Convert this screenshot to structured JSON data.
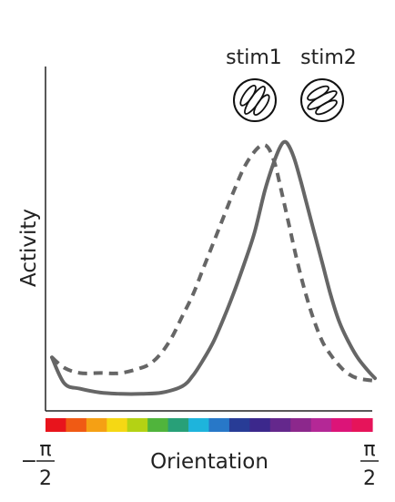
{
  "chart_data": {
    "type": "line",
    "xlabel": "Orientation",
    "ylabel": "Activity",
    "x_tick_min": {
      "sign": "−",
      "num": "π",
      "den": "2"
    },
    "x_tick_max": {
      "num": "π",
      "den": "2"
    },
    "xlim": [
      -1.5708,
      1.5708
    ],
    "ylim": [
      0,
      1
    ],
    "grid": false,
    "legend": [
      {
        "name": "stim1",
        "icon": "grating-icon-oblique",
        "line": "solid"
      },
      {
        "name": "stim2",
        "icon": "grating-icon-shallow",
        "line": "dashed"
      }
    ],
    "series": [
      {
        "name": "stim1",
        "style": "solid",
        "color": "#666666",
        "x": [
          -1.5708,
          -1.45,
          -1.3,
          -1.1,
          -0.9,
          -0.7,
          -0.5,
          -0.3,
          -0.2,
          -0.1,
          0.0,
          0.1,
          0.2,
          0.3,
          0.4,
          0.5,
          0.58,
          0.64,
          0.68,
          0.72,
          0.78,
          0.84,
          0.9,
          0.98,
          1.06,
          1.14,
          1.22,
          1.3,
          1.4,
          1.5,
          1.5708
        ],
        "y": [
          0.16,
          0.06,
          0.04,
          0.025,
          0.02,
          0.02,
          0.025,
          0.05,
          0.09,
          0.15,
          0.22,
          0.31,
          0.41,
          0.52,
          0.64,
          0.8,
          0.9,
          0.96,
          0.985,
          0.98,
          0.93,
          0.85,
          0.76,
          0.64,
          0.52,
          0.4,
          0.3,
          0.23,
          0.16,
          0.11,
          0.08
        ]
      },
      {
        "name": "stim2",
        "style": "dashed",
        "color": "#666666",
        "x": [
          -1.5708,
          -1.45,
          -1.3,
          -1.1,
          -0.9,
          -0.7,
          -0.6,
          -0.5,
          -0.4,
          -0.3,
          -0.2,
          -0.1,
          0.0,
          0.1,
          0.2,
          0.3,
          0.4,
          0.48,
          0.54,
          0.6,
          0.66,
          0.74,
          0.82,
          0.9,
          0.98,
          1.06,
          1.14,
          1.22,
          1.3,
          1.4,
          1.5708
        ],
        "y": [
          0.16,
          0.12,
          0.1,
          0.1,
          0.1,
          0.12,
          0.14,
          0.18,
          0.24,
          0.32,
          0.4,
          0.5,
          0.6,
          0.7,
          0.8,
          0.89,
          0.95,
          0.975,
          0.96,
          0.9,
          0.8,
          0.66,
          0.52,
          0.4,
          0.3,
          0.22,
          0.17,
          0.13,
          0.1,
          0.08,
          0.07
        ]
      }
    ],
    "colorbar": [
      "#e8141c",
      "#f05a14",
      "#f5a014",
      "#f5d814",
      "#b4d214",
      "#50b43c",
      "#28a078",
      "#1eb4dc",
      "#2878c8",
      "#283c96",
      "#3c288c",
      "#64288c",
      "#8c288c",
      "#b42896",
      "#dc1478",
      "#e6145a"
    ]
  }
}
